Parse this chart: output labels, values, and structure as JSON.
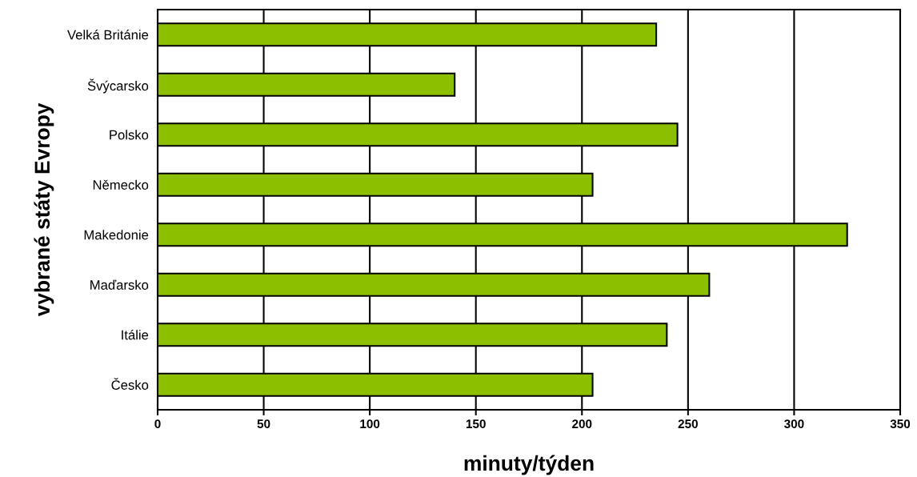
{
  "chart_data": {
    "type": "bar",
    "orientation": "horizontal",
    "xlabel": "minuty/týden",
    "ylabel": "vybrané státy Evropy",
    "categories": [
      "Velká Británie",
      "Švýcarsko",
      "Polsko",
      "Německo",
      "Makedonie",
      "Maďarsko",
      "Itálie",
      "Česko"
    ],
    "values": [
      235,
      140,
      245,
      205,
      325,
      260,
      240,
      205
    ],
    "color": "#8cbf00",
    "xlim": [
      0,
      350
    ],
    "xticks": [
      0,
      50,
      100,
      150,
      200,
      250,
      300,
      350
    ],
    "grid": "x"
  }
}
